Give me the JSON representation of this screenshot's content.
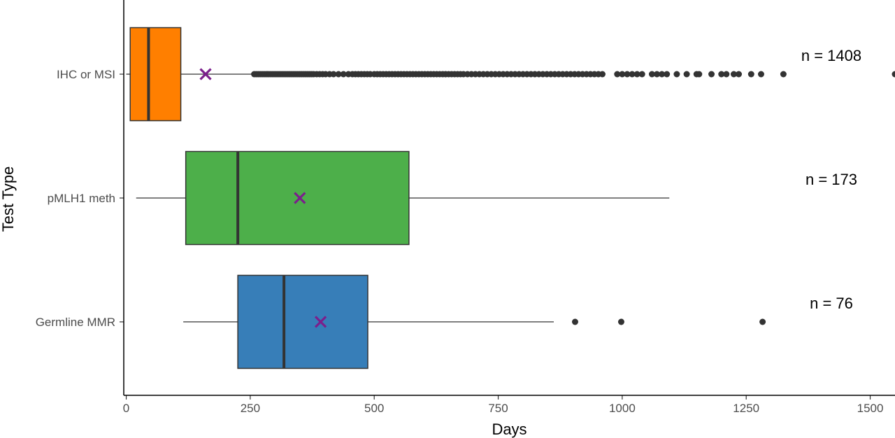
{
  "chart_data": {
    "type": "boxplot",
    "orientation": "horizontal",
    "xlabel": "Days",
    "ylabel": "Test Type",
    "xlim": [
      -5,
      1550
    ],
    "x_ticks": [
      0,
      250,
      500,
      750,
      1000,
      1250,
      1500
    ],
    "x_tick_labels": [
      "0",
      "250",
      "500",
      "750",
      "1000",
      "1250",
      "1500"
    ],
    "grid": false,
    "legend": "none",
    "mean_marker": "x",
    "mean_color": "#7b1f8c",
    "groups": [
      {
        "label": "IHC or MSI",
        "color": "#ff7f00",
        "whisker_low": 0,
        "q1": 8,
        "median": 45,
        "q3": 110,
        "whisker_high": 255,
        "mean": 160,
        "n_label": "n = 1408",
        "outliers": [
          258,
          262,
          266,
          270,
          274,
          278,
          282,
          286,
          290,
          294,
          298,
          302,
          306,
          310,
          314,
          318,
          322,
          326,
          330,
          334,
          338,
          342,
          346,
          350,
          354,
          358,
          362,
          366,
          370,
          374,
          378,
          384,
          390,
          396,
          402,
          410,
          418,
          428,
          438,
          448,
          456,
          462,
          468,
          474,
          480,
          486,
          492,
          500,
          506,
          512,
          518,
          524,
          530,
          536,
          542,
          548,
          554,
          560,
          566,
          572,
          578,
          584,
          590,
          596,
          602,
          608,
          614,
          620,
          626,
          632,
          638,
          644,
          650,
          656,
          662,
          668,
          674,
          680,
          688,
          696,
          704,
          712,
          720,
          728,
          736,
          744,
          752,
          760,
          768,
          776,
          784,
          792,
          800,
          808,
          816,
          824,
          832,
          840,
          848,
          856,
          864,
          872,
          880,
          888,
          896,
          904,
          912,
          920,
          928,
          936,
          944,
          952,
          960,
          990,
          1000,
          1010,
          1020,
          1030,
          1040,
          1060,
          1070,
          1080,
          1090,
          1110,
          1130,
          1150,
          1155,
          1180,
          1200,
          1210,
          1225,
          1235,
          1260,
          1280,
          1325,
          1550
        ]
      },
      {
        "label": "pMLH1 meth",
        "color": "#4daf4a",
        "whisker_low": 20,
        "q1": 120,
        "median": 225,
        "q3": 570,
        "whisker_high": 1095,
        "mean": 350,
        "n_label": "n = 173",
        "outliers": []
      },
      {
        "label": "Germline MMR",
        "color": "#377eb8",
        "whisker_low": 115,
        "q1": 225,
        "median": 318,
        "q3": 487,
        "whisker_high": 862,
        "mean": 392,
        "n_label": "n = 76",
        "outliers": [
          905,
          998,
          1283
        ]
      }
    ]
  }
}
